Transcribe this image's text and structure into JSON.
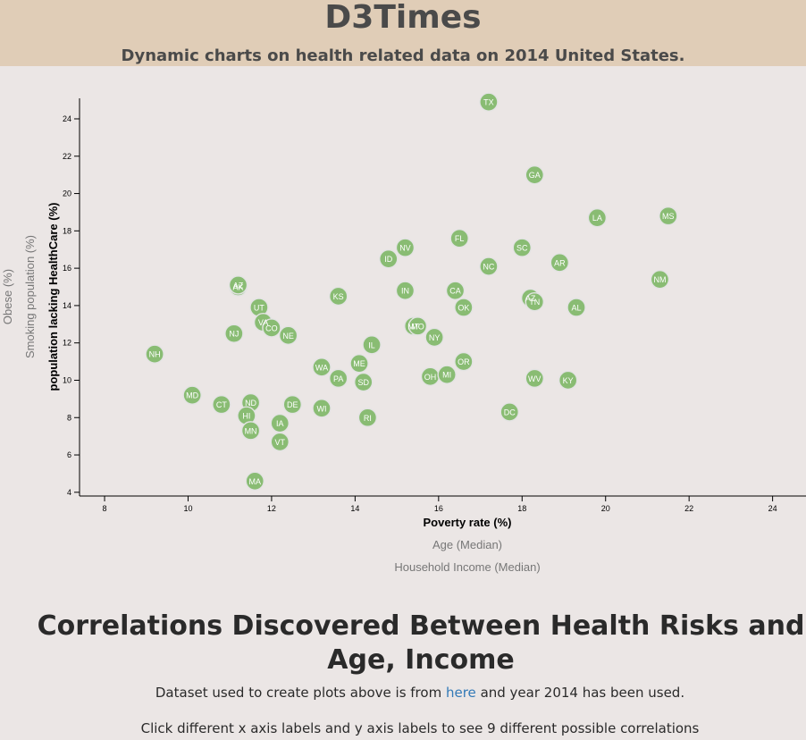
{
  "header": {
    "title": "D3Times",
    "subtitle": "Dynamic charts on health related data on 2014 United States."
  },
  "colors": {
    "header_bg": "#e0cdb7",
    "page_bg": "#ebe6e5",
    "marker": "#89bc73",
    "link": "#337ab7"
  },
  "chart_data": {
    "type": "scatter",
    "xlabel": "Poverty rate (%)",
    "ylabel": "population lacking HealthCare (%)",
    "x_axis_options": [
      "Poverty rate (%)",
      "Age (Median)",
      "Household Income (Median)"
    ],
    "y_axis_options": [
      "population lacking HealthCare (%)",
      "Smoking population (%)",
      "Obese (%)"
    ],
    "active_x": "Poverty rate (%)",
    "active_y": "population lacking HealthCare (%)",
    "xlim": [
      7.4,
      24.8
    ],
    "ylim": [
      3.8,
      25.1
    ],
    "xticks": [
      8,
      10,
      12,
      14,
      16,
      18,
      20,
      22,
      24
    ],
    "yticks": [
      4,
      6,
      8,
      10,
      12,
      14,
      16,
      18,
      20,
      22,
      24
    ],
    "grid": false,
    "points": [
      {
        "label": "TX",
        "x": 17.2,
        "y": 24.9
      },
      {
        "label": "GA",
        "x": 18.3,
        "y": 21.0
      },
      {
        "label": "LA",
        "x": 19.8,
        "y": 18.7
      },
      {
        "label": "MS",
        "x": 21.5,
        "y": 18.8
      },
      {
        "label": "FL",
        "x": 16.5,
        "y": 17.6
      },
      {
        "label": "SC",
        "x": 18.0,
        "y": 17.1
      },
      {
        "label": "NV",
        "x": 15.2,
        "y": 17.1
      },
      {
        "label": "ID",
        "x": 14.8,
        "y": 16.5
      },
      {
        "label": "AR",
        "x": 18.9,
        "y": 16.3
      },
      {
        "label": "NC",
        "x": 17.2,
        "y": 16.1
      },
      {
        "label": "NM",
        "x": 21.3,
        "y": 15.4
      },
      {
        "label": "AK",
        "x": 11.2,
        "y": 15.0
      },
      {
        "label": "AZ",
        "x": 11.2,
        "y": 15.1
      },
      {
        "label": "IN",
        "x": 15.2,
        "y": 14.8
      },
      {
        "label": "CA",
        "x": 16.4,
        "y": 14.8
      },
      {
        "label": "KS",
        "x": 13.6,
        "y": 14.5
      },
      {
        "label": "AZ",
        "x": 18.2,
        "y": 14.4
      },
      {
        "label": "TN",
        "x": 18.3,
        "y": 14.2
      },
      {
        "label": "OK",
        "x": 16.6,
        "y": 13.9
      },
      {
        "label": "AL",
        "x": 19.3,
        "y": 13.9
      },
      {
        "label": "UT",
        "x": 11.7,
        "y": 13.9
      },
      {
        "label": "VA",
        "x": 11.8,
        "y": 13.1
      },
      {
        "label": "CO",
        "x": 12.0,
        "y": 12.8
      },
      {
        "label": "MT",
        "x": 15.4,
        "y": 12.9
      },
      {
        "label": "MO",
        "x": 15.5,
        "y": 12.9
      },
      {
        "label": "NJ",
        "x": 11.1,
        "y": 12.5
      },
      {
        "label": "NE",
        "x": 12.4,
        "y": 12.4
      },
      {
        "label": "NY",
        "x": 15.9,
        "y": 12.3
      },
      {
        "label": "IL",
        "x": 14.4,
        "y": 11.9
      },
      {
        "label": "NH",
        "x": 9.2,
        "y": 11.4
      },
      {
        "label": "OR",
        "x": 16.6,
        "y": 11.0
      },
      {
        "label": "ME",
        "x": 14.1,
        "y": 10.9
      },
      {
        "label": "WA",
        "x": 13.2,
        "y": 10.7
      },
      {
        "label": "OH",
        "x": 15.8,
        "y": 10.2
      },
      {
        "label": "MI",
        "x": 16.2,
        "y": 10.3
      },
      {
        "label": "PA",
        "x": 13.6,
        "y": 10.1
      },
      {
        "label": "WV",
        "x": 18.3,
        "y": 10.1
      },
      {
        "label": "KY",
        "x": 19.1,
        "y": 10.0
      },
      {
        "label": "SD",
        "x": 14.2,
        "y": 9.9
      },
      {
        "label": "MD",
        "x": 10.1,
        "y": 9.2
      },
      {
        "label": "ND",
        "x": 11.5,
        "y": 8.8
      },
      {
        "label": "CT",
        "x": 10.8,
        "y": 8.7
      },
      {
        "label": "DE",
        "x": 12.5,
        "y": 8.7
      },
      {
        "label": "WI",
        "x": 13.2,
        "y": 8.5
      },
      {
        "label": "DC",
        "x": 17.7,
        "y": 8.3
      },
      {
        "label": "HI",
        "x": 11.4,
        "y": 8.1
      },
      {
        "label": "RI",
        "x": 14.3,
        "y": 8.0
      },
      {
        "label": "IA",
        "x": 12.2,
        "y": 7.7
      },
      {
        "label": "MN",
        "x": 11.5,
        "y": 7.3
      },
      {
        "label": "VT",
        "x": 12.2,
        "y": 6.7
      },
      {
        "label": "MA",
        "x": 11.6,
        "y": 4.6
      }
    ]
  },
  "footer": {
    "heading": "Correlations Discovered Between Health Risks and Age, Income",
    "dataset_prefix": "Dataset used to create plots above is from",
    "dataset_link": "here",
    "dataset_suffix": "and year 2014 has been used.",
    "click_note": "Click different x axis labels and y axis labels to see 9 different possible correlations"
  }
}
